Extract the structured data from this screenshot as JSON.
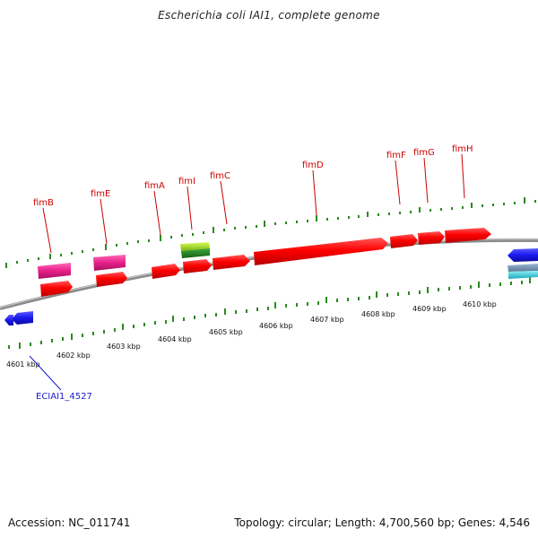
{
  "title": "Escherichia coli IAI1, complete genome",
  "footer": {
    "accession": "Accession: NC_011741",
    "summary": "Topology: circular; Length: 4,700,560 bp; Genes: 4,546"
  },
  "colors": {
    "backbone": "#8a8a8a",
    "tick": "#2a8a1e",
    "fim_gene": "#ff0000",
    "pink_gene": "#e8208a",
    "lime_gene": "#9ad21a",
    "blue_gene": "#1a1aee",
    "cyan_gene": "#22c8d8",
    "label_red": "#cc0000",
    "label_blue": "#1a1acc"
  },
  "scale": {
    "unit": "kbp",
    "labels": [
      "4601 kbp",
      "4602 kbp",
      "4603 kbp",
      "4604 kbp",
      "4605 kbp",
      "4606 kbp",
      "4607 kbp",
      "4608 kbp",
      "4609 kbp",
      "4610 kbp"
    ]
  },
  "gene_labels": [
    "fimB",
    "fimE",
    "fimA",
    "fimI",
    "fimC",
    "fimD",
    "fimF",
    "fimG",
    "fimH"
  ],
  "locus_labels": [
    "ECIAI1_4527"
  ]
}
